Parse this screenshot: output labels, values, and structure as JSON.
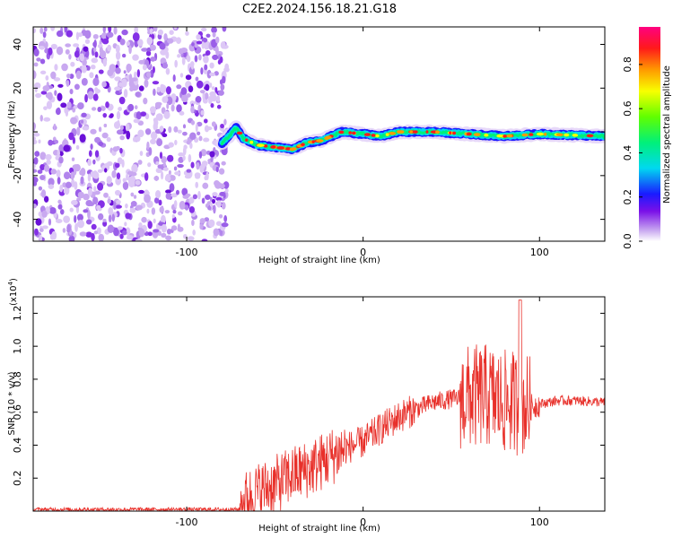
{
  "title": "C2E2.2024.156.18.21.G18",
  "chart_data": [
    {
      "type": "heatmap",
      "xlabel": "Height of straight line (km)",
      "ylabel": "Frequency (Hz)",
      "xlim": [
        -187,
        137
      ],
      "ylim": [
        -50,
        48
      ],
      "x_ticks": [
        -100,
        0,
        100
      ],
      "y_ticks": [
        -40,
        -20,
        0,
        20,
        40
      ],
      "colorbar": {
        "label": "Normalized spectral amplitude",
        "range": [
          0,
          0.97
        ],
        "ticks": [
          0.0,
          0.2,
          0.4,
          0.6,
          0.8
        ]
      },
      "noise_region_x": [
        -187,
        -77
      ],
      "ridge_center_hz": [
        [
          -80,
          -5
        ],
        [
          -76,
          -2
        ],
        [
          -72,
          2
        ],
        [
          -68,
          -3
        ],
        [
          -60,
          -6
        ],
        [
          -50,
          -7
        ],
        [
          -40,
          -8
        ],
        [
          -32,
          -5
        ],
        [
          -24,
          -4
        ],
        [
          -18,
          -2
        ],
        [
          -12,
          0
        ],
        [
          0,
          -1
        ],
        [
          10,
          -2
        ],
        [
          20,
          0
        ],
        [
          40,
          0
        ],
        [
          60,
          -1
        ],
        [
          80,
          -2
        ],
        [
          100,
          -1
        ],
        [
          137,
          -2
        ]
      ]
    },
    {
      "type": "line",
      "xlabel": "Height of straight line (km)",
      "ylabel": "SNR (10 * v/v)",
      "y_scale_label": "(x10",
      "y_scale_exponent": "4",
      "y_scale": 10000,
      "xlim": [
        -187,
        137
      ],
      "ylim": [
        0,
        1.3
      ],
      "x_ticks": [
        -100,
        0,
        100
      ],
      "y_ticks": [
        0.2,
        0.4,
        0.6,
        0.8,
        1.0,
        1.2
      ],
      "series": [
        {
          "color": "#e8302a",
          "envelope_x": [
            -187,
            -70,
            -68,
            -60,
            -50,
            -40,
            -30,
            -20,
            -10,
            0,
            10,
            20,
            30,
            40,
            50,
            60,
            70,
            80,
            85,
            90,
            95,
            100,
            110,
            120,
            137
          ],
          "envelope_y": [
            0.01,
            0.01,
            0.06,
            0.12,
            0.16,
            0.22,
            0.26,
            0.32,
            0.38,
            0.42,
            0.5,
            0.57,
            0.62,
            0.66,
            0.68,
            0.69,
            0.7,
            0.66,
            0.66,
            0.65,
            0.63,
            0.65,
            0.67,
            0.67,
            0.66
          ]
        }
      ]
    }
  ]
}
